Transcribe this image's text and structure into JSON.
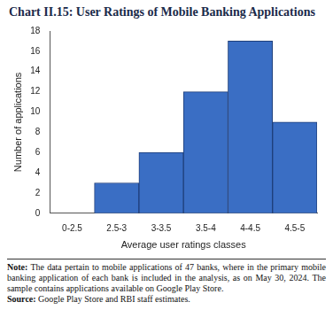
{
  "chart_data": {
    "type": "bar",
    "title": "Chart II.15: User Ratings of Mobile Banking Applications",
    "x_label": "Average user ratings classes",
    "y_label": "Number of applications",
    "categories": [
      "0-2.5",
      "2.5-3",
      "3-3.5",
      "3.5-4",
      "4-4.5",
      "4.5-5"
    ],
    "values": [
      0,
      3,
      6,
      12,
      17,
      9
    ],
    "color": "#3a6ec4",
    "ylim": [
      0,
      18
    ],
    "yticks": [
      0,
      2,
      4,
      6,
      8,
      10,
      12,
      14,
      16,
      18
    ],
    "grid": false
  },
  "note": {
    "label": "Note:",
    "text": "The data pertain to mobile applications of 47 banks, where in the primary mobile banking application of each bank is included in the analysis, as on May 30, 2024. The sample contains applications available on Google Play Store."
  },
  "source": {
    "label": "Source:",
    "text": "Google Play Store and RBI staff estimates."
  }
}
